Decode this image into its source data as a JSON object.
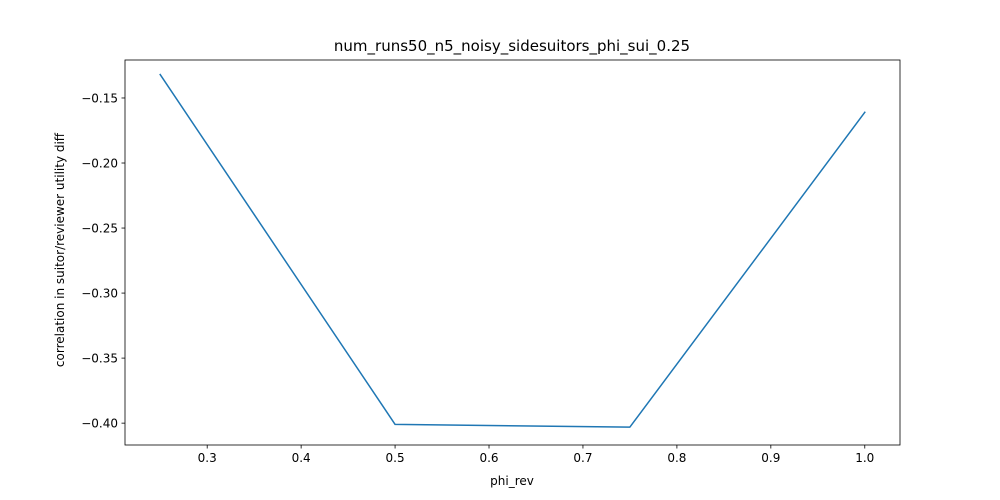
{
  "chart_data": {
    "type": "line",
    "title": "num_runs50_n5_noisy_sidesuitors_phi_sui_0.25",
    "xlabel": "phi_rev",
    "ylabel": "correlation in suitor/reviewer utility diff",
    "xlim": [
      0.2125,
      1.0375
    ],
    "ylim": [
      -0.4168,
      -0.1208
    ],
    "x_ticks": [
      0.3,
      0.4,
      0.5,
      0.6,
      0.7,
      0.8,
      0.9,
      1.0
    ],
    "x_tick_labels": [
      "0.3",
      "0.4",
      "0.5",
      "0.6",
      "0.7",
      "0.8",
      "0.9",
      "1.0"
    ],
    "y_ticks": [
      -0.15,
      -0.2,
      -0.25,
      -0.3,
      -0.35,
      -0.4
    ],
    "y_tick_labels": [
      "−0.15",
      "−0.20",
      "−0.25",
      "−0.30",
      "−0.35",
      "−0.40"
    ],
    "grid": false,
    "series": [
      {
        "x": [
          0.25,
          0.5,
          0.75,
          1.0
        ],
        "values": [
          -0.132,
          -0.401,
          -0.403,
          -0.161
        ],
        "color": "#1f77b4"
      }
    ]
  }
}
